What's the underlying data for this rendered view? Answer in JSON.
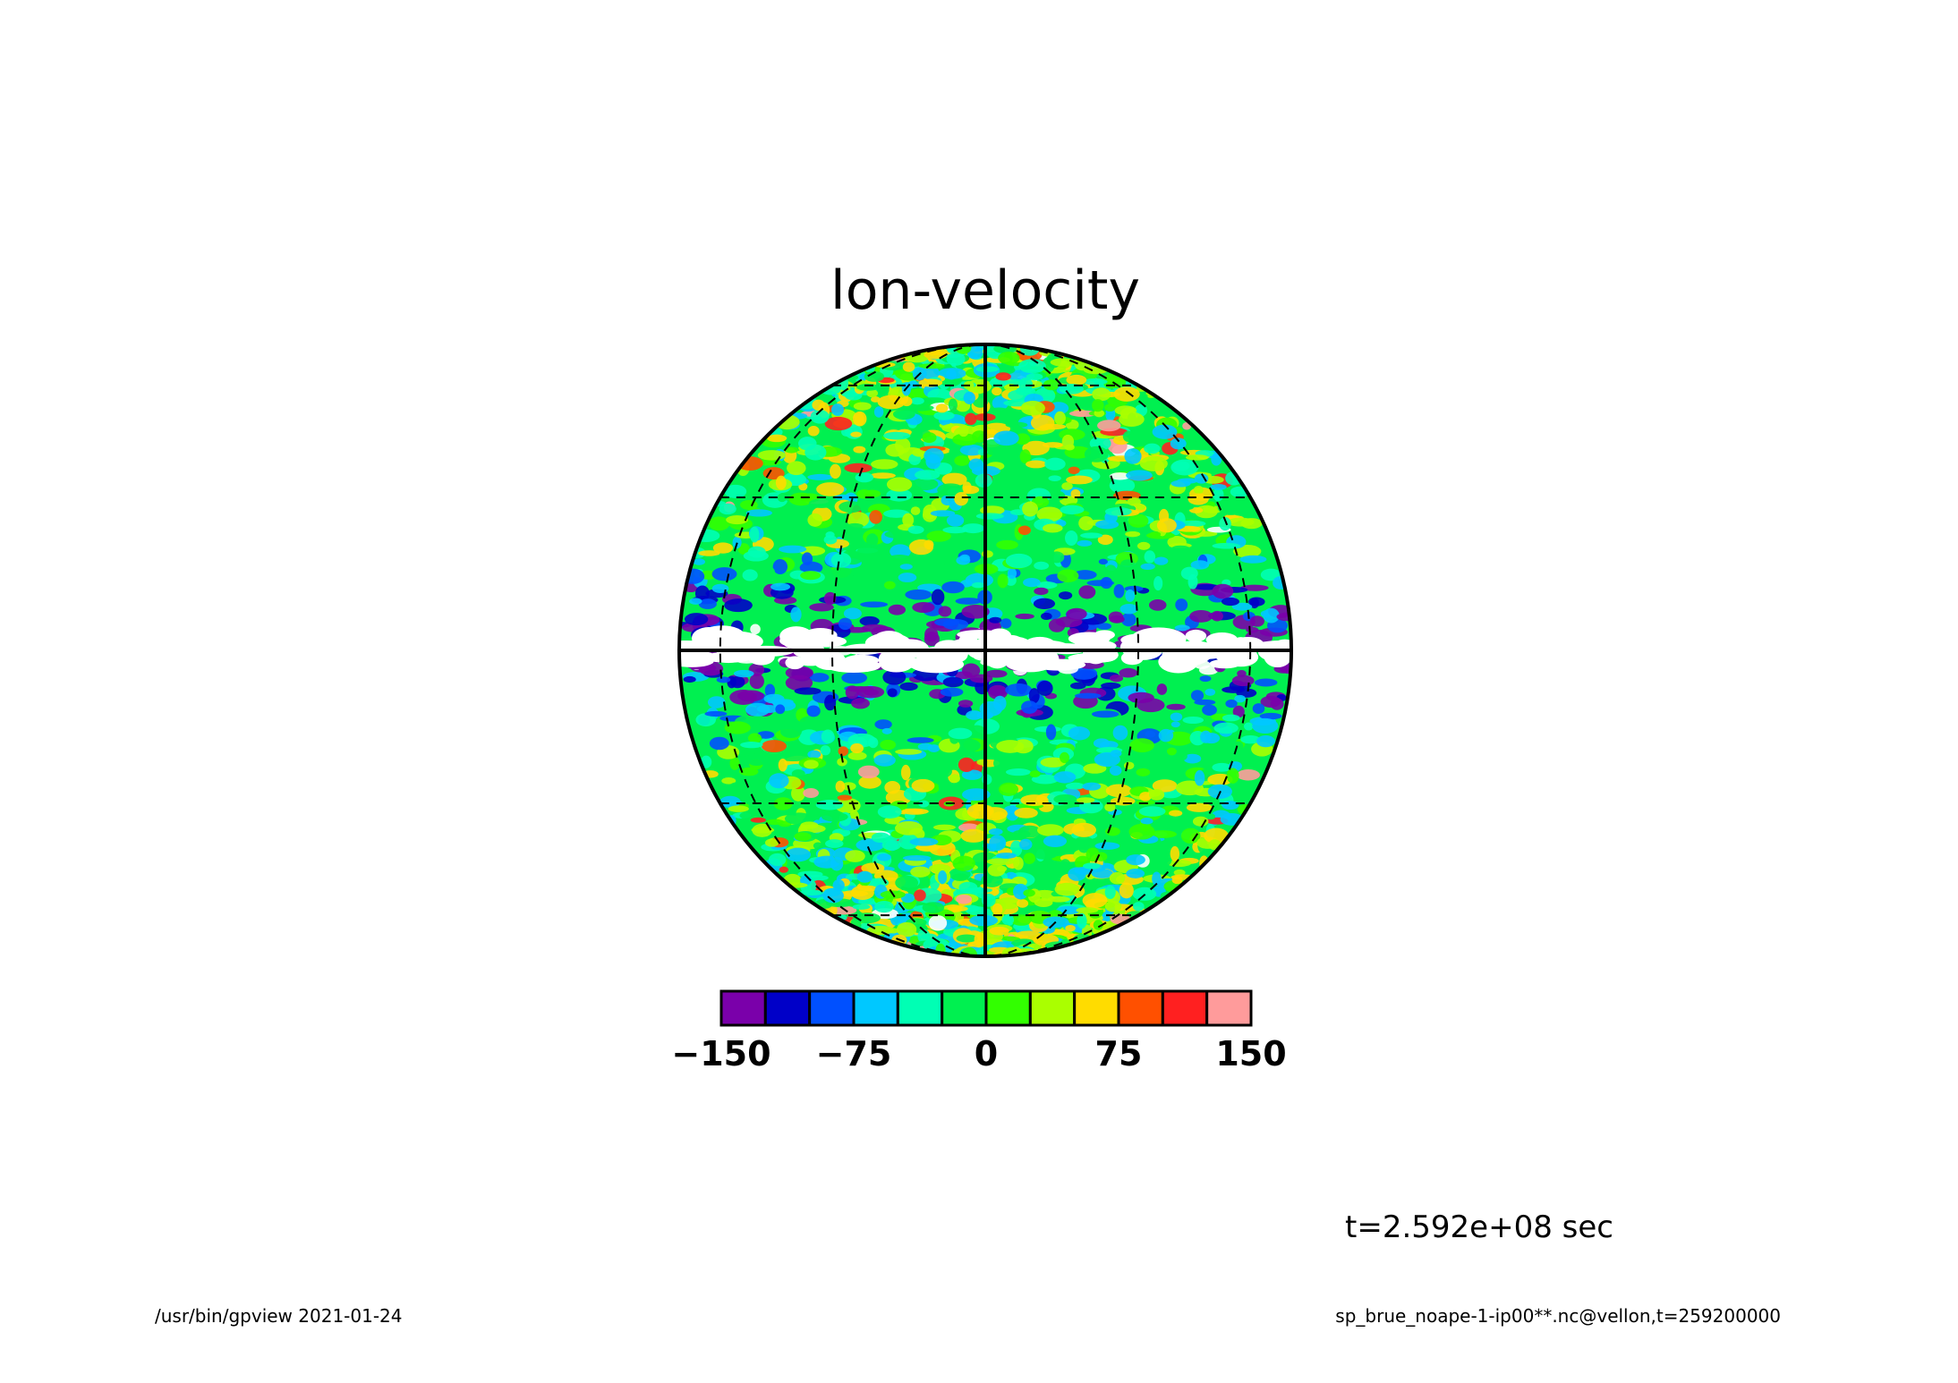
{
  "chart_data": {
    "type": "heatmap",
    "projection": "orthographic",
    "title": "lon-velocity",
    "colorbar": {
      "levels": [
        -150,
        -125,
        -100,
        -75,
        -50,
        -25,
        0,
        25,
        50,
        75,
        100,
        125,
        150
      ],
      "colors": [
        "#7a00aa",
        "#0000c8",
        "#0050ff",
        "#00c8ff",
        "#00ffb4",
        "#00f050",
        "#32ff00",
        "#aaff00",
        "#ffdc00",
        "#ff5000",
        "#ff2020",
        "#ff9b9b"
      ],
      "tick_labels": [
        "−150",
        "−75",
        "0",
        "75",
        "150"
      ],
      "tick_values": [
        -150,
        -75,
        0,
        75,
        150
      ],
      "over_color": "#ffffff",
      "under_color": "#ffffff"
    },
    "graticule": {
      "meridians_dashed": true,
      "parallels_dashed": true,
      "equator_solid": true,
      "central_meridian_solid": true
    },
    "field_description_bands": [
      {
        "lat_range": [
          -10,
          10
        ],
        "dominant": "very negative (blue/purple/white)"
      },
      {
        "lat_range": [
          10,
          90
        ],
        "dominant": "near zero with red/yellow patches"
      },
      {
        "lat_range": [
          -90,
          -10
        ],
        "dominant": "near zero with red/yellow patches"
      }
    ]
  },
  "annotations": {
    "time": "t=2.592e+08 sec",
    "footer_left": "/usr/bin/gpview   2021-01-24",
    "footer_right": "sp_brue_noape-1-ip00**.nc@vellon,t=259200000"
  }
}
